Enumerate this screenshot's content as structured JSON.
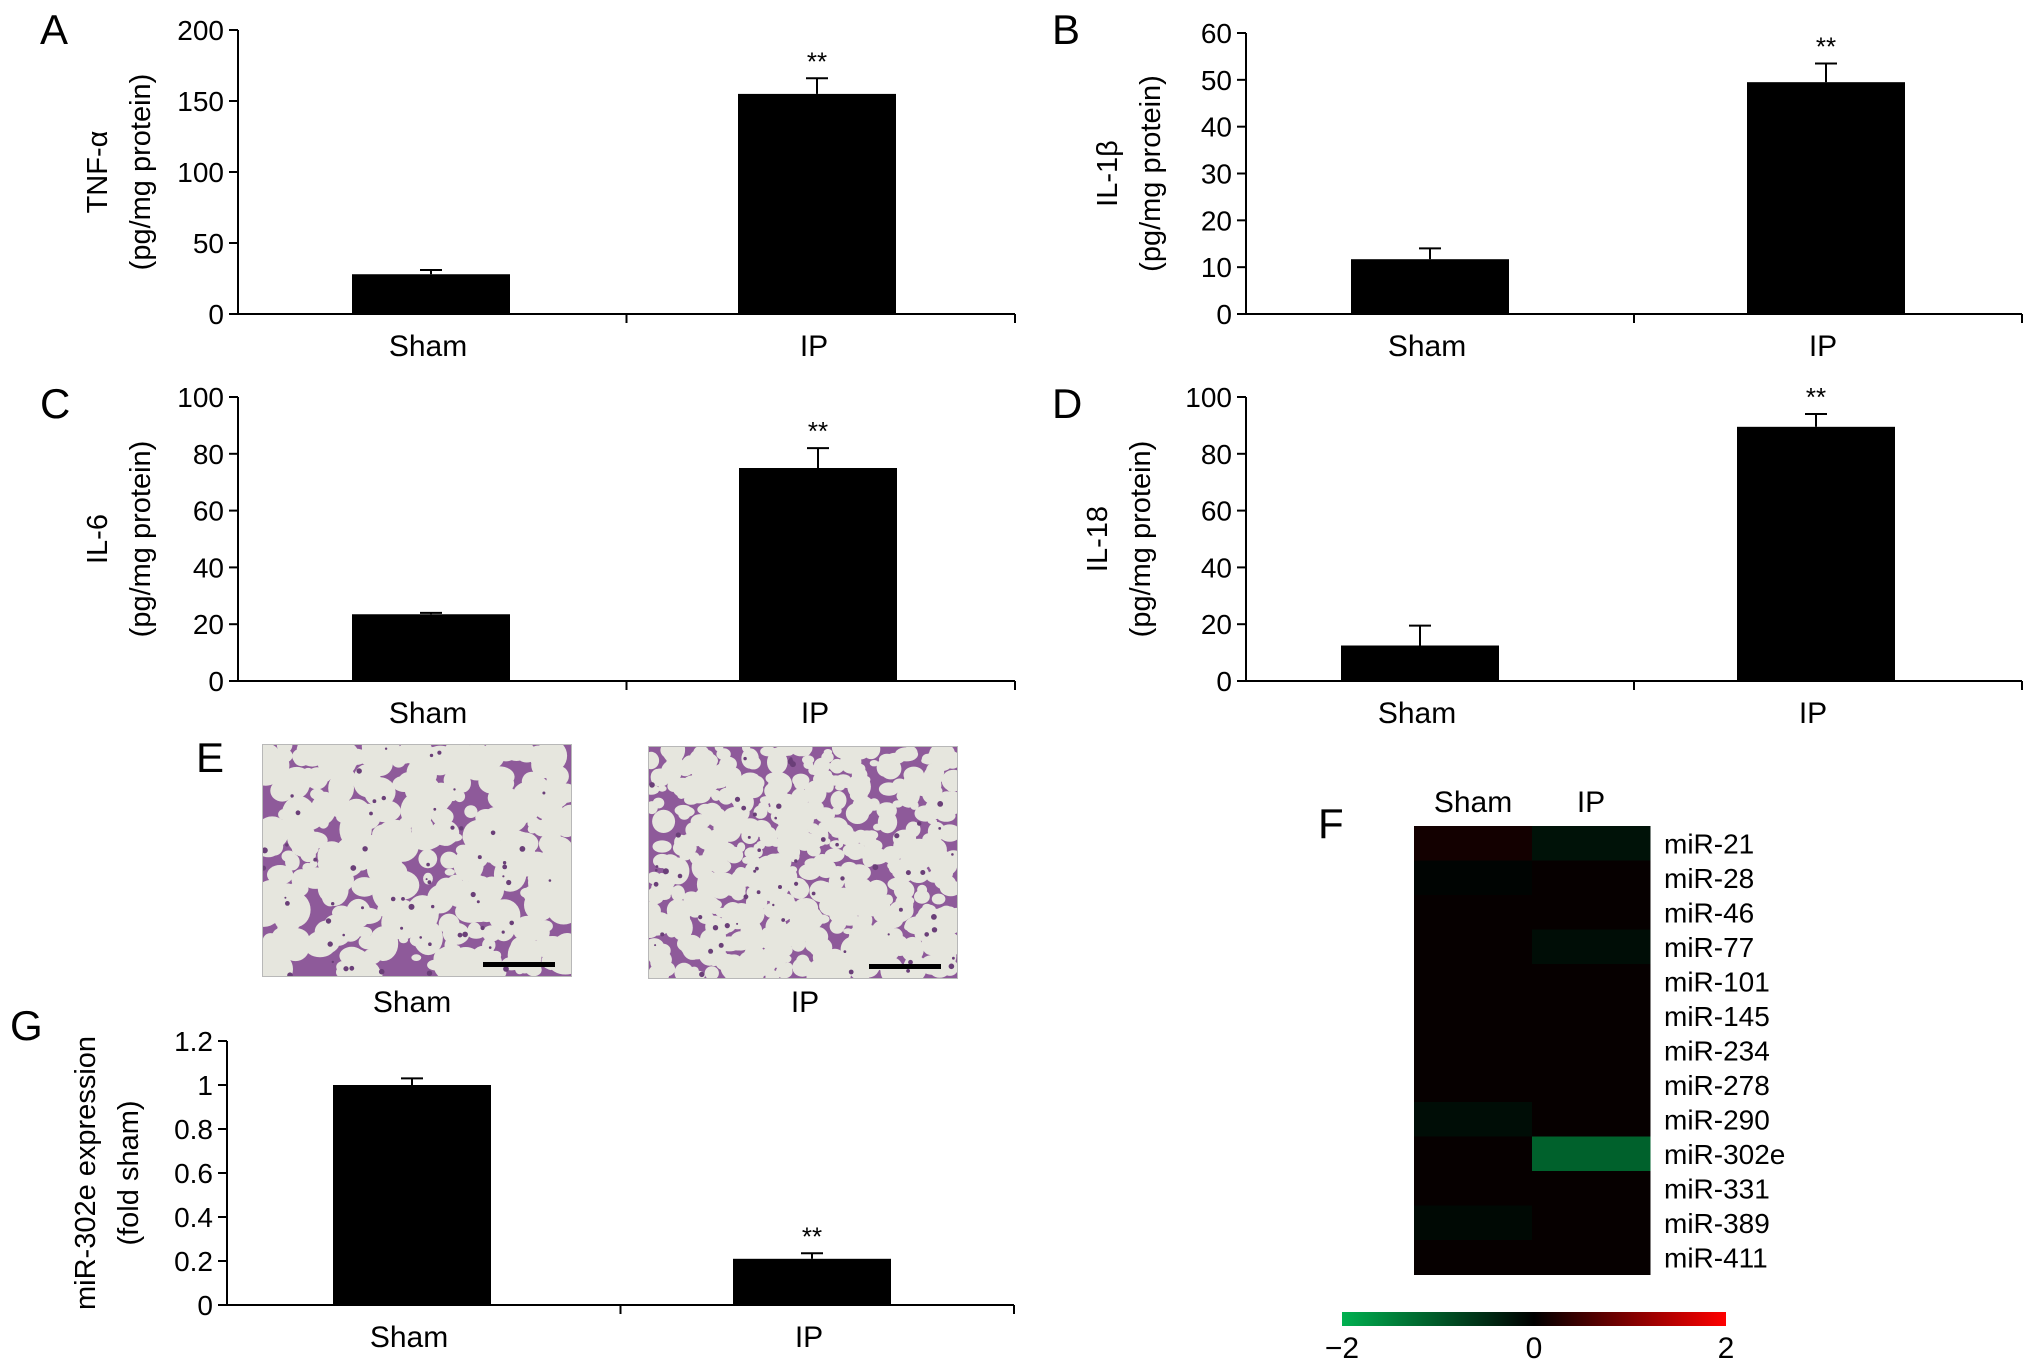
{
  "panel_letters": [
    "A",
    "B",
    "C",
    "D",
    "E",
    "F",
    "G"
  ],
  "chart_data": [
    {
      "id": "A",
      "type": "bar",
      "categories": [
        "Sham",
        "IP"
      ],
      "values": [
        28,
        155
      ],
      "errors": [
        3,
        11
      ],
      "significance": [
        "",
        "**"
      ],
      "ylabel": "TNF-α",
      "ylabel_unit": "(pg/mg protein)",
      "ylim": [
        0,
        200
      ],
      "yticks": [
        0,
        50,
        100,
        150,
        200
      ]
    },
    {
      "id": "B",
      "type": "bar",
      "categories": [
        "Sham",
        "IP"
      ],
      "values": [
        11.7,
        49.5
      ],
      "errors": [
        2.3,
        4.0
      ],
      "significance": [
        "",
        "**"
      ],
      "ylabel": "IL-1β",
      "ylabel_unit": "(pg/mg protein)",
      "ylim": [
        0,
        60
      ],
      "yticks": [
        0,
        10,
        20,
        30,
        40,
        50,
        60
      ]
    },
    {
      "id": "C",
      "type": "bar",
      "categories": [
        "Sham",
        "IP"
      ],
      "values": [
        23.5,
        75
      ],
      "errors": [
        0.5,
        7
      ],
      "significance": [
        "",
        "**"
      ],
      "ylabel": "IL-6",
      "ylabel_unit": "(pg/mg protein)",
      "ylim": [
        0,
        100
      ],
      "yticks": [
        0,
        20,
        40,
        60,
        80,
        100
      ]
    },
    {
      "id": "D",
      "type": "bar",
      "categories": [
        "Sham",
        "IP"
      ],
      "values": [
        12.5,
        89.5
      ],
      "errors": [
        7,
        4.5
      ],
      "significance": [
        "",
        "**"
      ],
      "ylabel": "IL-18",
      "ylabel_unit": "(pg/mg protein)",
      "ylim": [
        0,
        100
      ],
      "yticks": [
        0,
        20,
        40,
        60,
        80,
        100
      ]
    },
    {
      "id": "G",
      "type": "bar",
      "categories": [
        "Sham",
        "IP"
      ],
      "values": [
        1.0,
        0.21
      ],
      "errors": [
        0.03,
        0.025
      ],
      "significance": [
        "",
        "**"
      ],
      "ylabel": "miR-302e expression",
      "ylabel_unit": "(fold sham)",
      "ylim": [
        0,
        1.2
      ],
      "yticks": [
        "0",
        "0.2",
        "0.4",
        "0.6",
        "0.8",
        "1",
        "1.2"
      ]
    },
    {
      "id": "F",
      "type": "heatmap",
      "columns": [
        "Sham",
        "IP"
      ],
      "rows": [
        "miR-21",
        "miR-28",
        "miR-46",
        "miR-77",
        "miR-101",
        "miR-145",
        "miR-234",
        "miR-278",
        "miR-290",
        "miR-302e",
        "miR-331",
        "miR-389",
        "miR-411"
      ],
      "values": [
        [
          0.15,
          -0.2
        ],
        [
          -0.05,
          0.05
        ],
        [
          0.05,
          0.05
        ],
        [
          0.05,
          -0.15
        ],
        [
          0.05,
          0.05
        ],
        [
          0.05,
          0.05
        ],
        [
          0.05,
          0.05
        ],
        [
          0.05,
          0.05
        ],
        [
          -0.15,
          0.05
        ],
        [
          0.05,
          -1.1
        ],
        [
          0.05,
          0.05
        ],
        [
          -0.1,
          0.05
        ],
        [
          0.05,
          0.05
        ]
      ],
      "scale_min": -2,
      "scale_max": 2,
      "scale_ticks": [
        "−2",
        "0",
        "2"
      ],
      "colors": {
        "low": "#00b050",
        "mid": "#000000",
        "high": "#ff0000"
      }
    }
  ],
  "micrographs": {
    "labels": [
      "Sham",
      "IP"
    ],
    "stain_colors": {
      "background": "#e6e6de",
      "tissue": "#8e5a9a",
      "dense": "#6a3f78"
    }
  }
}
